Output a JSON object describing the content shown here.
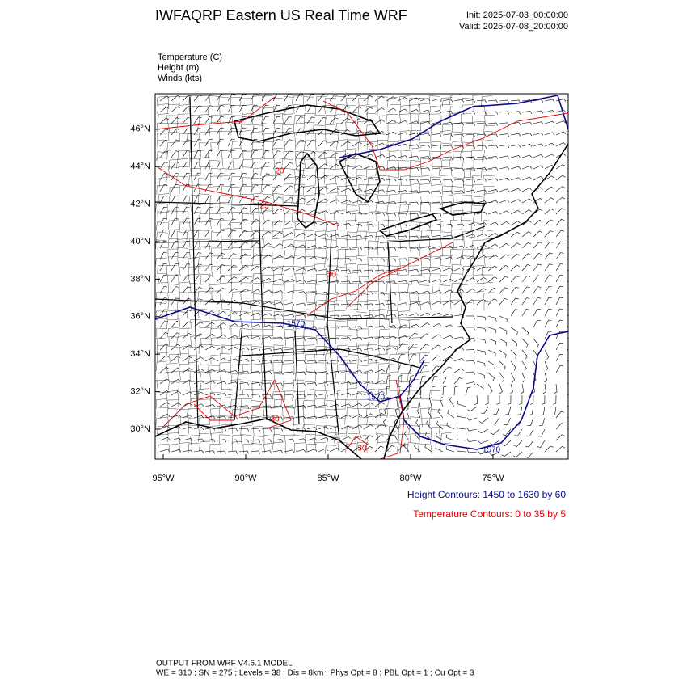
{
  "header": {
    "title": "IWFAQRP Eastern US Real Time WRF",
    "init": "Init: 2025-07-03_00:00:00",
    "valid": "Valid: 2025-07-08_20:00:00"
  },
  "fields": [
    "Temperature   (C)",
    "Height   (m)",
    "Winds   (kts)"
  ],
  "axes": {
    "lat_labels": [
      "30°N",
      "32°N",
      "34°N",
      "36°N",
      "38°N",
      "40°N",
      "42°N",
      "44°N",
      "46°N"
    ],
    "lon_labels": [
      "95°W",
      "90°W",
      "85°W",
      "80°W",
      "75°W"
    ]
  },
  "contour_labels": [
    "1570",
    "1570",
    "1570",
    "20",
    "25",
    "30",
    "30",
    "30"
  ],
  "legend": {
    "height": "Height Contours: 1450 to 1630 by 60",
    "temperature": "Temperature Contours: 0 to 35 by 5"
  },
  "footer": {
    "line1": "OUTPUT FROM WRF V4.6.1 MODEL",
    "line2": "WE = 310 ; SN = 275 ; Levels = 38 ; Dis = 8km ; Phys Opt = 8 ; PBL Opt = 1 ; Cu Opt = 3"
  }
}
